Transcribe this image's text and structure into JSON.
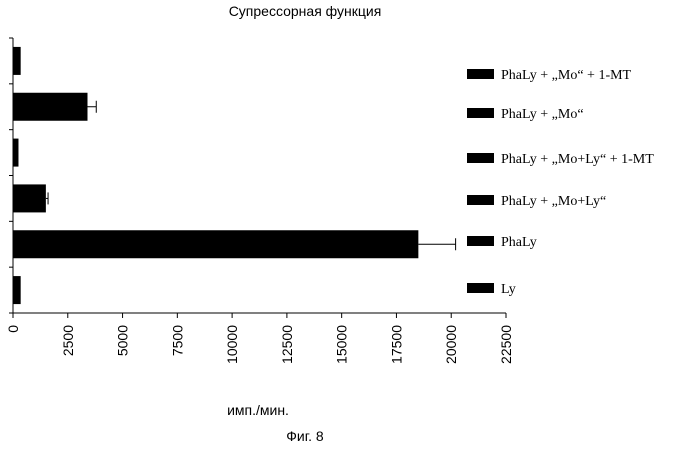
{
  "chart_data": {
    "type": "bar",
    "orientation": "horizontal",
    "title": "Супрессорная функция",
    "xlabel": "имп./мин.",
    "ylabel": "",
    "caption": "Фиг. 8",
    "xlim": [
      0,
      22500
    ],
    "x_ticks": [
      "0",
      "2500",
      "5000",
      "7500",
      "10000",
      "12500",
      "15000",
      "17500",
      "20000",
      "22500"
    ],
    "categories": [
      "PhaLy + „Mo“ + 1-MT",
      "PhaLy + „Mo“",
      "PhaLy + „Mo+Ly“ + 1-MT",
      "PhaLy + „Mo+Ly“",
      "PhaLy",
      "Ly"
    ],
    "values": [
      350,
      3400,
      250,
      1500,
      18500,
      350
    ],
    "errors": [
      0,
      400,
      0,
      100,
      1700,
      0
    ],
    "legend_position": "right",
    "grid": false,
    "bar_color": "#000000"
  }
}
